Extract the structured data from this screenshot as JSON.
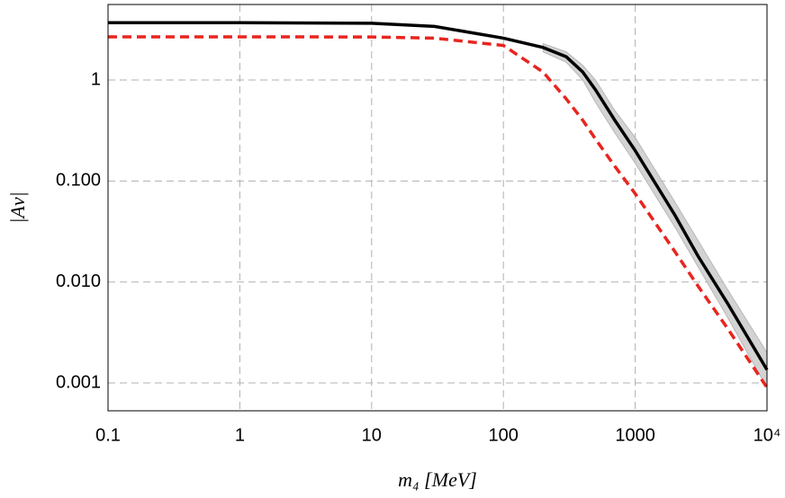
{
  "chart_data": {
    "type": "line",
    "x_label": "m₄ [MeV]",
    "y_label": "|Aν|",
    "x": [
      0.1,
      1,
      10,
      30,
      100,
      200,
      300,
      400,
      500,
      700,
      1000,
      2000,
      3000,
      5000,
      10000
    ],
    "series": [
      {
        "name": "solid",
        "color": "#000000",
        "style": "solid",
        "values": [
          3.7,
          3.7,
          3.65,
          3.4,
          2.6,
          2.1,
          1.7,
          1.2,
          0.8,
          0.4,
          0.2,
          0.046,
          0.018,
          0.0062,
          0.00135
        ]
      },
      {
        "name": "dashed",
        "color": "#e8251f",
        "style": "dashed",
        "values": [
          2.68,
          2.68,
          2.67,
          2.6,
          2.2,
          1.2,
          0.65,
          0.4,
          0.26,
          0.14,
          0.075,
          0.02,
          0.0091,
          0.0035,
          0.0009
        ]
      }
    ],
    "band": {
      "color": "#c8c8c8",
      "x": [
        200,
        300,
        400,
        500,
        700,
        1000,
        2000,
        5000,
        10000
      ],
      "lower": [
        1.9,
        1.5,
        1.0,
        0.6,
        0.3,
        0.15,
        0.035,
        0.0045,
        0.0009
      ],
      "upper": [
        2.3,
        1.9,
        1.4,
        1.0,
        0.5,
        0.27,
        0.062,
        0.0085,
        0.002
      ]
    },
    "log_x": true,
    "log_y": true,
    "grid": true,
    "xlim": [
      0.1,
      10000
    ],
    "ylim": [
      0.00053,
      5.6
    ],
    "xticks": [
      0.1,
      1,
      10,
      100,
      1000,
      {
        "value": 10000,
        "label": "10⁴"
      }
    ],
    "yticks": [
      {
        "value": 0.001,
        "label": "0.001"
      },
      {
        "value": 0.01,
        "label": "0.010"
      },
      {
        "value": 0.1,
        "label": "0.100"
      },
      1
    ]
  }
}
